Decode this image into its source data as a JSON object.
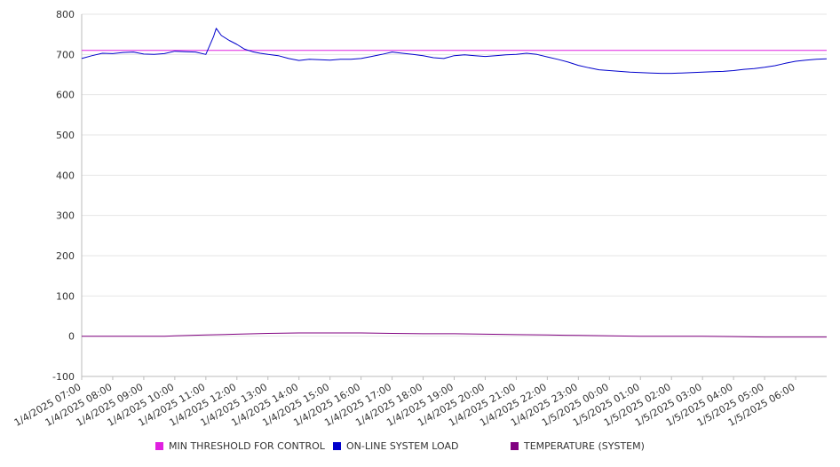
{
  "chart_data": {
    "type": "line",
    "y_ticks": [
      "800",
      "700",
      "600",
      "500",
      "400",
      "300",
      "200",
      "100",
      "0",
      "-100"
    ],
    "ylim": [
      -100,
      800
    ],
    "grid": "horizontal",
    "x_start": "1/4/2025 07:00",
    "x_end": "1/5/2025 07:00",
    "x_tick_labels": [
      "1/4/2025 07:00",
      "1/4/2025 08:00",
      "1/4/2025 09:00",
      "1/4/2025 10:00",
      "1/4/2025 11:00",
      "1/4/2025 12:00",
      "1/4/2025 13:00",
      "1/4/2025 14:00",
      "1/4/2025 15:00",
      "1/4/2025 16:00",
      "1/4/2025 17:00",
      "1/4/2025 18:00",
      "1/4/2025 19:00",
      "1/4/2025 20:00",
      "1/4/2025 21:00",
      "1/4/2025 22:00",
      "1/4/2025 23:00",
      "1/5/2025 00:00",
      "1/5/2025 01:00",
      "1/5/2025 02:00",
      "1/5/2025 03:00",
      "1/5/2025 04:00",
      "1/5/2025 05:00",
      "1/5/2025 06:00"
    ],
    "legend_position": "bottom",
    "series": [
      {
        "name": "MIN THRESHOLD FOR CONTROL",
        "color": "#e020e0",
        "points": [
          [
            "1/4/2025 07:00",
            710
          ],
          [
            "1/5/2025 07:00",
            710
          ]
        ]
      },
      {
        "name": "ON-LINE SYSTEM LOAD",
        "color": "#0000cc",
        "points": [
          [
            "1/4/2025 07:00",
            690
          ],
          [
            "1/4/2025 07:20",
            697
          ],
          [
            "1/4/2025 07:40",
            703
          ],
          [
            "1/4/2025 08:00",
            702
          ],
          [
            "1/4/2025 08:20",
            705
          ],
          [
            "1/4/2025 08:40",
            706
          ],
          [
            "1/4/2025 09:00",
            701
          ],
          [
            "1/4/2025 09:20",
            700
          ],
          [
            "1/4/2025 09:40",
            702
          ],
          [
            "1/4/2025 10:00",
            708
          ],
          [
            "1/4/2025 10:20",
            707
          ],
          [
            "1/4/2025 10:40",
            706
          ],
          [
            "1/4/2025 11:00",
            700
          ],
          [
            "1/4/2025 11:15",
            745
          ],
          [
            "1/4/2025 11:20",
            765
          ],
          [
            "1/4/2025 11:30",
            747
          ],
          [
            "1/4/2025 11:45",
            735
          ],
          [
            "1/4/2025 12:00",
            725
          ],
          [
            "1/4/2025 12:15",
            713
          ],
          [
            "1/4/2025 12:30",
            707
          ],
          [
            "1/4/2025 12:45",
            703
          ],
          [
            "1/4/2025 13:00",
            700
          ],
          [
            "1/4/2025 13:20",
            697
          ],
          [
            "1/4/2025 13:40",
            690
          ],
          [
            "1/4/2025 14:00",
            685
          ],
          [
            "1/4/2025 14:20",
            688
          ],
          [
            "1/4/2025 14:40",
            687
          ],
          [
            "1/4/2025 15:00",
            686
          ],
          [
            "1/4/2025 15:20",
            688
          ],
          [
            "1/4/2025 15:40",
            688
          ],
          [
            "1/4/2025 16:00",
            690
          ],
          [
            "1/4/2025 16:20",
            695
          ],
          [
            "1/4/2025 16:40",
            700
          ],
          [
            "1/4/2025 17:00",
            706
          ],
          [
            "1/4/2025 17:20",
            703
          ],
          [
            "1/4/2025 17:40",
            700
          ],
          [
            "1/4/2025 18:00",
            697
          ],
          [
            "1/4/2025 18:20",
            692
          ],
          [
            "1/4/2025 18:40",
            690
          ],
          [
            "1/4/2025 19:00",
            697
          ],
          [
            "1/4/2025 19:20",
            699
          ],
          [
            "1/4/2025 19:40",
            697
          ],
          [
            "1/4/2025 20:00",
            695
          ],
          [
            "1/4/2025 20:20",
            697
          ],
          [
            "1/4/2025 20:40",
            699
          ],
          [
            "1/4/2025 21:00",
            700
          ],
          [
            "1/4/2025 21:20",
            703
          ],
          [
            "1/4/2025 21:40",
            700
          ],
          [
            "1/4/2025 22:00",
            694
          ],
          [
            "1/4/2025 22:20",
            688
          ],
          [
            "1/4/2025 22:40",
            681
          ],
          [
            "1/4/2025 23:00",
            673
          ],
          [
            "1/4/2025 23:20",
            667
          ],
          [
            "1/4/2025 23:40",
            662
          ],
          [
            "1/5/2025 00:00",
            660
          ],
          [
            "1/5/2025 00:20",
            658
          ],
          [
            "1/5/2025 00:40",
            656
          ],
          [
            "1/5/2025 01:00",
            655
          ],
          [
            "1/5/2025 01:20",
            654
          ],
          [
            "1/5/2025 01:40",
            653
          ],
          [
            "1/5/2025 02:00",
            653
          ],
          [
            "1/5/2025 02:20",
            654
          ],
          [
            "1/5/2025 02:40",
            655
          ],
          [
            "1/5/2025 03:00",
            656
          ],
          [
            "1/5/2025 03:20",
            657
          ],
          [
            "1/5/2025 03:40",
            658
          ],
          [
            "1/5/2025 04:00",
            660
          ],
          [
            "1/5/2025 04:20",
            663
          ],
          [
            "1/5/2025 04:40",
            665
          ],
          [
            "1/5/2025 05:00",
            668
          ],
          [
            "1/5/2025 05:20",
            672
          ],
          [
            "1/5/2025 05:40",
            678
          ],
          [
            "1/5/2025 06:00",
            683
          ],
          [
            "1/5/2025 06:20",
            686
          ],
          [
            "1/5/2025 06:40",
            688
          ],
          [
            "1/5/2025 07:00",
            689
          ]
        ]
      },
      {
        "name": "TEMPERATURE (SYSTEM)",
        "color": "#800080",
        "points": [
          [
            "1/4/2025 07:00",
            0
          ],
          [
            "1/4/2025 09:00",
            0
          ],
          [
            "1/4/2025 09:40",
            0
          ],
          [
            "1/4/2025 10:00",
            1
          ],
          [
            "1/4/2025 11:00",
            3
          ],
          [
            "1/4/2025 12:00",
            5
          ],
          [
            "1/4/2025 13:00",
            7
          ],
          [
            "1/4/2025 14:00",
            8
          ],
          [
            "1/4/2025 15:00",
            8
          ],
          [
            "1/4/2025 16:00",
            8
          ],
          [
            "1/4/2025 17:00",
            7
          ],
          [
            "1/4/2025 18:00",
            6
          ],
          [
            "1/4/2025 19:00",
            6
          ],
          [
            "1/4/2025 20:00",
            5
          ],
          [
            "1/4/2025 21:00",
            4
          ],
          [
            "1/4/2025 22:00",
            3
          ],
          [
            "1/4/2025 23:00",
            2
          ],
          [
            "1/5/2025 00:00",
            1
          ],
          [
            "1/5/2025 01:00",
            0
          ],
          [
            "1/5/2025 02:00",
            0
          ],
          [
            "1/5/2025 03:00",
            0
          ],
          [
            "1/5/2025 04:00",
            -1
          ],
          [
            "1/5/2025 05:00",
            -2
          ],
          [
            "1/5/2025 06:00",
            -2
          ],
          [
            "1/5/2025 07:00",
            -2
          ]
        ]
      }
    ]
  }
}
